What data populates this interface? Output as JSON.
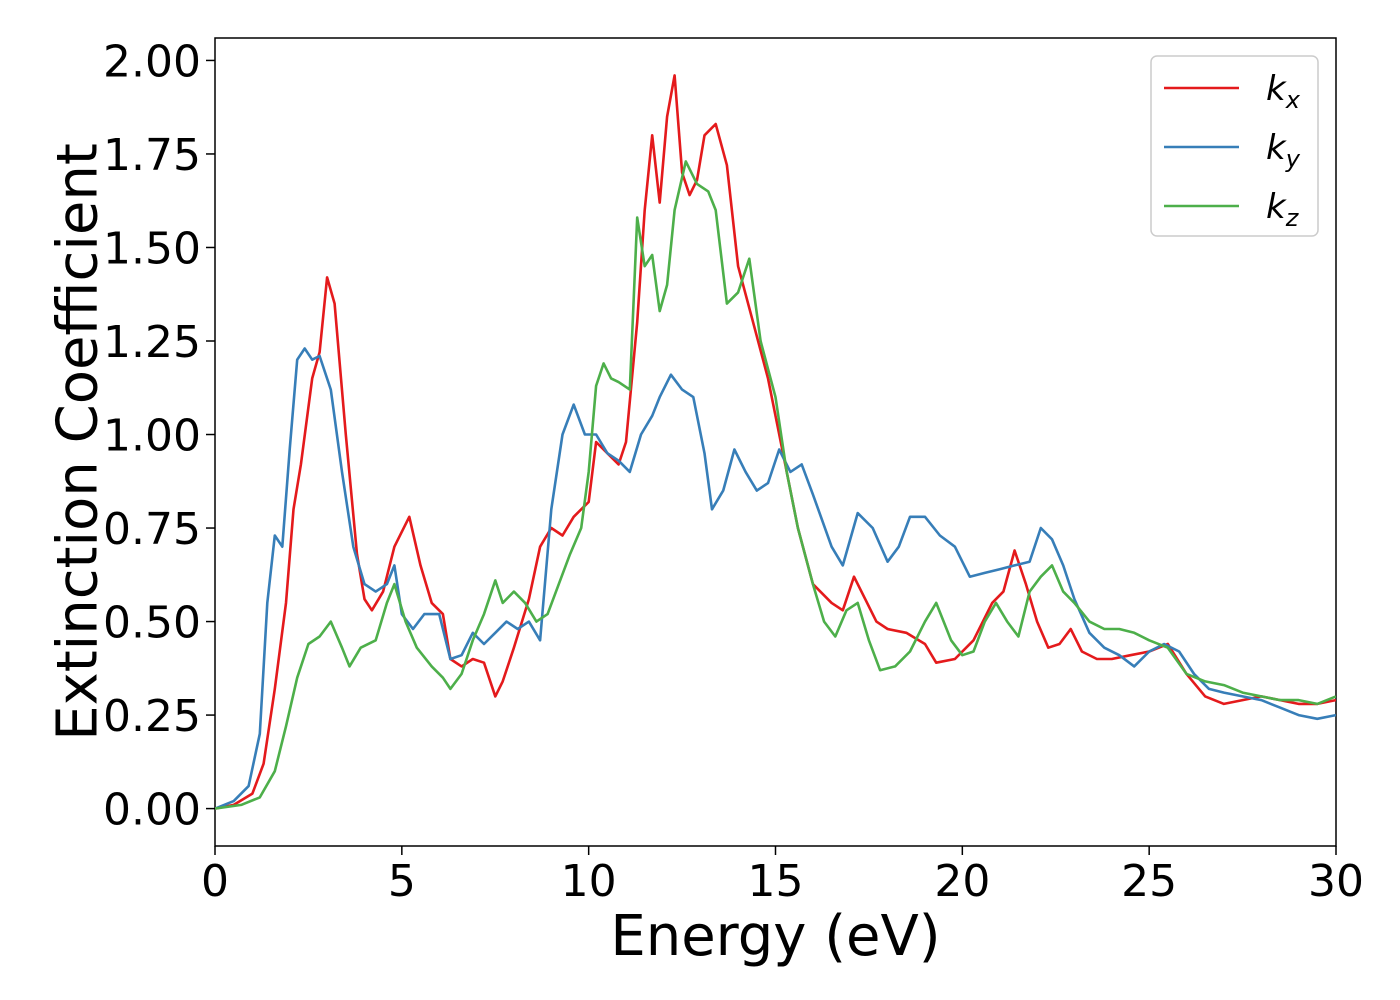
{
  "chart_data": {
    "type": "line",
    "title": "",
    "xlabel": "Energy (eV)",
    "ylabel": "Extinction Coefficient",
    "xlim": [
      0,
      30
    ],
    "ylim": [
      -0.1,
      2.06
    ],
    "xticks": [
      0,
      5,
      10,
      15,
      20,
      25,
      30
    ],
    "xtick_labels": [
      "0",
      "5",
      "10",
      "15",
      "20",
      "25",
      "30"
    ],
    "yticks": [
      0,
      0.25,
      0.5,
      0.75,
      1.0,
      1.25,
      1.5,
      1.75,
      2.0
    ],
    "ytick_labels": [
      "0.00",
      "0.25",
      "0.50",
      "0.75",
      "1.00",
      "1.25",
      "1.50",
      "1.75",
      "2.00"
    ],
    "grid": false,
    "legend_position": "top-right",
    "series": [
      {
        "name": "k_x",
        "label_base": "k",
        "label_sub": "x",
        "color": "#e41a1c",
        "points": [
          [
            0,
            0
          ],
          [
            0.5,
            0.01
          ],
          [
            1,
            0.04
          ],
          [
            1.3,
            0.12
          ],
          [
            1.6,
            0.32
          ],
          [
            1.9,
            0.55
          ],
          [
            2.1,
            0.8
          ],
          [
            2.3,
            0.92
          ],
          [
            2.6,
            1.15
          ],
          [
            2.8,
            1.22
          ],
          [
            3.0,
            1.42
          ],
          [
            3.2,
            1.35
          ],
          [
            3.5,
            1.0
          ],
          [
            3.8,
            0.68
          ],
          [
            4.0,
            0.56
          ],
          [
            4.2,
            0.53
          ],
          [
            4.5,
            0.58
          ],
          [
            4.8,
            0.7
          ],
          [
            5.0,
            0.74
          ],
          [
            5.2,
            0.78
          ],
          [
            5.5,
            0.65
          ],
          [
            5.8,
            0.55
          ],
          [
            6.1,
            0.52
          ],
          [
            6.3,
            0.4
          ],
          [
            6.6,
            0.38
          ],
          [
            6.9,
            0.4
          ],
          [
            7.2,
            0.39
          ],
          [
            7.5,
            0.3
          ],
          [
            7.7,
            0.34
          ],
          [
            8.0,
            0.43
          ],
          [
            8.4,
            0.56
          ],
          [
            8.7,
            0.7
          ],
          [
            9.0,
            0.75
          ],
          [
            9.3,
            0.73
          ],
          [
            9.6,
            0.78
          ],
          [
            10.0,
            0.82
          ],
          [
            10.2,
            0.98
          ],
          [
            10.5,
            0.95
          ],
          [
            10.8,
            0.92
          ],
          [
            11.0,
            0.98
          ],
          [
            11.3,
            1.3
          ],
          [
            11.5,
            1.6
          ],
          [
            11.7,
            1.8
          ],
          [
            11.9,
            1.62
          ],
          [
            12.1,
            1.85
          ],
          [
            12.3,
            1.96
          ],
          [
            12.5,
            1.7
          ],
          [
            12.7,
            1.64
          ],
          [
            12.9,
            1.68
          ],
          [
            13.1,
            1.8
          ],
          [
            13.4,
            1.83
          ],
          [
            13.7,
            1.72
          ],
          [
            14.0,
            1.45
          ],
          [
            14.4,
            1.3
          ],
          [
            14.8,
            1.15
          ],
          [
            15.2,
            0.95
          ],
          [
            15.6,
            0.75
          ],
          [
            16.0,
            0.6
          ],
          [
            16.5,
            0.55
          ],
          [
            16.8,
            0.53
          ],
          [
            17.1,
            0.62
          ],
          [
            17.4,
            0.56
          ],
          [
            17.7,
            0.5
          ],
          [
            18.0,
            0.48
          ],
          [
            18.5,
            0.47
          ],
          [
            19.0,
            0.44
          ],
          [
            19.3,
            0.39
          ],
          [
            19.8,
            0.4
          ],
          [
            20.3,
            0.45
          ],
          [
            20.8,
            0.55
          ],
          [
            21.1,
            0.58
          ],
          [
            21.4,
            0.69
          ],
          [
            21.7,
            0.6
          ],
          [
            22.0,
            0.5
          ],
          [
            22.3,
            0.43
          ],
          [
            22.6,
            0.44
          ],
          [
            22.9,
            0.48
          ],
          [
            23.2,
            0.42
          ],
          [
            23.6,
            0.4
          ],
          [
            24.0,
            0.4
          ],
          [
            24.5,
            0.41
          ],
          [
            25.0,
            0.42
          ],
          [
            25.5,
            0.44
          ],
          [
            26.0,
            0.36
          ],
          [
            26.5,
            0.3
          ],
          [
            27.0,
            0.28
          ],
          [
            27.5,
            0.29
          ],
          [
            28.0,
            0.3
          ],
          [
            28.5,
            0.29
          ],
          [
            29.0,
            0.28
          ],
          [
            29.5,
            0.28
          ],
          [
            30.0,
            0.29
          ]
        ]
      },
      {
        "name": "k_y",
        "label_base": "k",
        "label_sub": "y",
        "color": "#377eb8",
        "points": [
          [
            0,
            0
          ],
          [
            0.5,
            0.02
          ],
          [
            0.9,
            0.06
          ],
          [
            1.2,
            0.2
          ],
          [
            1.4,
            0.55
          ],
          [
            1.6,
            0.73
          ],
          [
            1.8,
            0.7
          ],
          [
            2.0,
            0.96
          ],
          [
            2.2,
            1.2
          ],
          [
            2.4,
            1.23
          ],
          [
            2.6,
            1.2
          ],
          [
            2.8,
            1.21
          ],
          [
            3.1,
            1.12
          ],
          [
            3.4,
            0.9
          ],
          [
            3.7,
            0.7
          ],
          [
            4.0,
            0.6
          ],
          [
            4.3,
            0.58
          ],
          [
            4.6,
            0.6
          ],
          [
            4.8,
            0.65
          ],
          [
            5.0,
            0.52
          ],
          [
            5.3,
            0.48
          ],
          [
            5.6,
            0.52
          ],
          [
            6.0,
            0.52
          ],
          [
            6.3,
            0.4
          ],
          [
            6.6,
            0.41
          ],
          [
            6.9,
            0.47
          ],
          [
            7.2,
            0.44
          ],
          [
            7.5,
            0.47
          ],
          [
            7.8,
            0.5
          ],
          [
            8.1,
            0.48
          ],
          [
            8.4,
            0.5
          ],
          [
            8.7,
            0.45
          ],
          [
            9.0,
            0.8
          ],
          [
            9.3,
            1.0
          ],
          [
            9.6,
            1.08
          ],
          [
            9.9,
            1.0
          ],
          [
            10.2,
            1.0
          ],
          [
            10.5,
            0.95
          ],
          [
            10.8,
            0.93
          ],
          [
            11.1,
            0.9
          ],
          [
            11.4,
            1.0
          ],
          [
            11.7,
            1.05
          ],
          [
            11.9,
            1.1
          ],
          [
            12.2,
            1.16
          ],
          [
            12.5,
            1.12
          ],
          [
            12.8,
            1.1
          ],
          [
            13.1,
            0.95
          ],
          [
            13.3,
            0.8
          ],
          [
            13.6,
            0.85
          ],
          [
            13.9,
            0.96
          ],
          [
            14.2,
            0.9
          ],
          [
            14.5,
            0.85
          ],
          [
            14.8,
            0.87
          ],
          [
            15.1,
            0.96
          ],
          [
            15.4,
            0.9
          ],
          [
            15.7,
            0.92
          ],
          [
            16.0,
            0.84
          ],
          [
            16.5,
            0.7
          ],
          [
            16.8,
            0.65
          ],
          [
            17.2,
            0.79
          ],
          [
            17.6,
            0.75
          ],
          [
            18.0,
            0.66
          ],
          [
            18.3,
            0.7
          ],
          [
            18.6,
            0.78
          ],
          [
            19.0,
            0.78
          ],
          [
            19.4,
            0.73
          ],
          [
            19.8,
            0.7
          ],
          [
            20.2,
            0.62
          ],
          [
            20.6,
            0.63
          ],
          [
            21.0,
            0.64
          ],
          [
            21.4,
            0.65
          ],
          [
            21.8,
            0.66
          ],
          [
            22.1,
            0.75
          ],
          [
            22.4,
            0.72
          ],
          [
            22.7,
            0.65
          ],
          [
            23.0,
            0.56
          ],
          [
            23.4,
            0.47
          ],
          [
            23.8,
            0.43
          ],
          [
            24.2,
            0.41
          ],
          [
            24.6,
            0.38
          ],
          [
            25.0,
            0.42
          ],
          [
            25.4,
            0.44
          ],
          [
            25.8,
            0.42
          ],
          [
            26.2,
            0.36
          ],
          [
            26.6,
            0.32
          ],
          [
            27.0,
            0.31
          ],
          [
            27.5,
            0.3
          ],
          [
            28.0,
            0.29
          ],
          [
            28.5,
            0.27
          ],
          [
            29.0,
            0.25
          ],
          [
            29.5,
            0.24
          ],
          [
            30.0,
            0.25
          ]
        ]
      },
      {
        "name": "k_z",
        "label_base": "k",
        "label_sub": "z",
        "color": "#4daf4a",
        "points": [
          [
            0,
            0
          ],
          [
            0.7,
            0.01
          ],
          [
            1.2,
            0.03
          ],
          [
            1.6,
            0.1
          ],
          [
            1.9,
            0.22
          ],
          [
            2.2,
            0.35
          ],
          [
            2.5,
            0.44
          ],
          [
            2.8,
            0.46
          ],
          [
            3.1,
            0.5
          ],
          [
            3.4,
            0.43
          ],
          [
            3.6,
            0.38
          ],
          [
            3.9,
            0.43
          ],
          [
            4.3,
            0.45
          ],
          [
            4.6,
            0.55
          ],
          [
            4.8,
            0.6
          ],
          [
            5.1,
            0.5
          ],
          [
            5.4,
            0.43
          ],
          [
            5.8,
            0.38
          ],
          [
            6.1,
            0.35
          ],
          [
            6.3,
            0.32
          ],
          [
            6.6,
            0.36
          ],
          [
            6.9,
            0.45
          ],
          [
            7.2,
            0.52
          ],
          [
            7.5,
            0.61
          ],
          [
            7.7,
            0.55
          ],
          [
            8.0,
            0.58
          ],
          [
            8.3,
            0.55
          ],
          [
            8.6,
            0.5
          ],
          [
            8.9,
            0.52
          ],
          [
            9.2,
            0.6
          ],
          [
            9.5,
            0.68
          ],
          [
            9.8,
            0.75
          ],
          [
            10.0,
            0.9
          ],
          [
            10.2,
            1.13
          ],
          [
            10.4,
            1.19
          ],
          [
            10.6,
            1.15
          ],
          [
            10.8,
            1.14
          ],
          [
            11.1,
            1.12
          ],
          [
            11.3,
            1.58
          ],
          [
            11.5,
            1.45
          ],
          [
            11.7,
            1.48
          ],
          [
            11.9,
            1.33
          ],
          [
            12.1,
            1.4
          ],
          [
            12.3,
            1.6
          ],
          [
            12.6,
            1.73
          ],
          [
            12.9,
            1.67
          ],
          [
            13.2,
            1.65
          ],
          [
            13.4,
            1.6
          ],
          [
            13.7,
            1.35
          ],
          [
            14.0,
            1.38
          ],
          [
            14.3,
            1.47
          ],
          [
            14.6,
            1.25
          ],
          [
            15.0,
            1.1
          ],
          [
            15.3,
            0.9
          ],
          [
            15.6,
            0.75
          ],
          [
            16.0,
            0.6
          ],
          [
            16.3,
            0.5
          ],
          [
            16.6,
            0.46
          ],
          [
            16.9,
            0.53
          ],
          [
            17.2,
            0.55
          ],
          [
            17.5,
            0.45
          ],
          [
            17.8,
            0.37
          ],
          [
            18.2,
            0.38
          ],
          [
            18.6,
            0.42
          ],
          [
            19.0,
            0.5
          ],
          [
            19.3,
            0.55
          ],
          [
            19.7,
            0.45
          ],
          [
            20.0,
            0.41
          ],
          [
            20.3,
            0.42
          ],
          [
            20.6,
            0.5
          ],
          [
            20.9,
            0.55
          ],
          [
            21.2,
            0.5
          ],
          [
            21.5,
            0.46
          ],
          [
            21.8,
            0.58
          ],
          [
            22.1,
            0.62
          ],
          [
            22.4,
            0.65
          ],
          [
            22.7,
            0.58
          ],
          [
            23.0,
            0.55
          ],
          [
            23.4,
            0.5
          ],
          [
            23.8,
            0.48
          ],
          [
            24.2,
            0.48
          ],
          [
            24.6,
            0.47
          ],
          [
            25.0,
            0.45
          ],
          [
            25.5,
            0.43
          ],
          [
            26.0,
            0.36
          ],
          [
            26.5,
            0.34
          ],
          [
            27.0,
            0.33
          ],
          [
            27.5,
            0.31
          ],
          [
            28.0,
            0.3
          ],
          [
            28.5,
            0.29
          ],
          [
            29.0,
            0.29
          ],
          [
            29.5,
            0.28
          ],
          [
            30.0,
            0.3
          ]
        ]
      }
    ]
  }
}
